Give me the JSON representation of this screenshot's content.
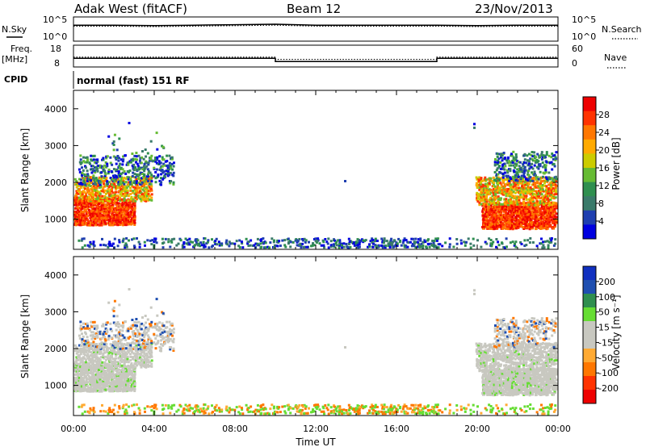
{
  "header": {
    "station": "Adak West (fitACF)",
    "beam": "Beam 12",
    "date": "23/Nov/2013"
  },
  "side_labels": {
    "nsky": "N.Sky",
    "nsearch": "N.Search",
    "freq": "Freq.",
    "mhz": "[MHz]",
    "nave": "Nave",
    "cpid": "CPID",
    "cpid_text": "normal (fast) 151 RF"
  },
  "noise_panel": {
    "left_ticks": [
      "10^5",
      "10^0"
    ],
    "right_ticks": [
      "10^5",
      "10^0"
    ]
  },
  "freq_panel": {
    "left_ticks": [
      "18",
      "8"
    ],
    "right_ticks": [
      "60",
      "0"
    ]
  },
  "colors": {
    "power_scale": [
      "#0000e0",
      "#1f3fb0",
      "#3a7a6a",
      "#2f8f4f",
      "#66bb33",
      "#cccc00",
      "#ffaa00",
      "#ff7700",
      "#ff3300",
      "#ee0000"
    ],
    "velocity_scale": [
      "#ee0000",
      "#ff3300",
      "#ff7700",
      "#ffaa33",
      "#c8c8c0",
      "#c8c8c0",
      "#66dd33",
      "#2f8f4f",
      "#1f4fb0",
      "#1030c0"
    ],
    "ground_scatter": "#c8c8c0"
  },
  "chart_data": [
    {
      "type": "line",
      "name": "noise",
      "x_unit": "hours UT",
      "x": [
        0,
        2,
        4,
        6,
        8,
        10,
        12,
        14,
        16,
        18,
        20,
        22,
        24
      ],
      "series": [
        {
          "name": "N.Sky",
          "values": [
            3.3,
            3.3,
            3.2,
            3.3,
            3.4,
            3.5,
            3.3,
            3.3,
            3.3,
            3.3,
            3.2,
            3.3,
            3.3
          ]
        },
        {
          "name": "N.Search",
          "values": [
            3.1,
            3.1,
            3.0,
            3.1,
            3.2,
            3.3,
            3.1,
            3.1,
            3.1,
            3.1,
            3.0,
            3.1,
            3.1
          ]
        }
      ]
    },
    {
      "type": "line",
      "name": "freq-nave",
      "x_unit": "hours UT",
      "segments": [
        {
          "x": [
            0,
            10
          ],
          "freq": 12,
          "nave": 27
        },
        {
          "x": [
            10,
            18
          ],
          "freq": 10.5,
          "nave": 21
        },
        {
          "x": [
            18,
            24
          ],
          "freq": 12,
          "nave": 27
        }
      ],
      "ylim_freq": [
        8,
        18
      ],
      "ylim_nave": [
        0,
        60
      ]
    },
    {
      "type": "heatmap",
      "name": "power",
      "xlabel": "",
      "ylabel": "Slant Range [km]",
      "xlim": [
        0,
        24
      ],
      "ylim": [
        180,
        4500
      ],
      "yticks": [
        1000,
        2000,
        3000,
        4000
      ],
      "colorbar_label": "Power [dB]",
      "colorbar_ticks": [
        "4",
        "8",
        "12",
        "16",
        "20",
        "24",
        "28"
      ]
    },
    {
      "type": "heatmap",
      "name": "velocity",
      "xlabel": "Time UT",
      "ylabel": "Slant Range [km]",
      "xlim": [
        0,
        24
      ],
      "ylim": [
        180,
        4500
      ],
      "yticks": [
        1000,
        2000,
        3000,
        4000
      ],
      "xticks": [
        "00:00",
        "04:00",
        "08:00",
        "12:00",
        "16:00",
        "20:00",
        "00:00"
      ],
      "colorbar_label": "Velocity [m s⁻¹]",
      "colorbar_ticks": [
        "200",
        "100",
        "50",
        "15",
        "-15",
        "-50",
        "-100",
        "-200"
      ]
    }
  ]
}
